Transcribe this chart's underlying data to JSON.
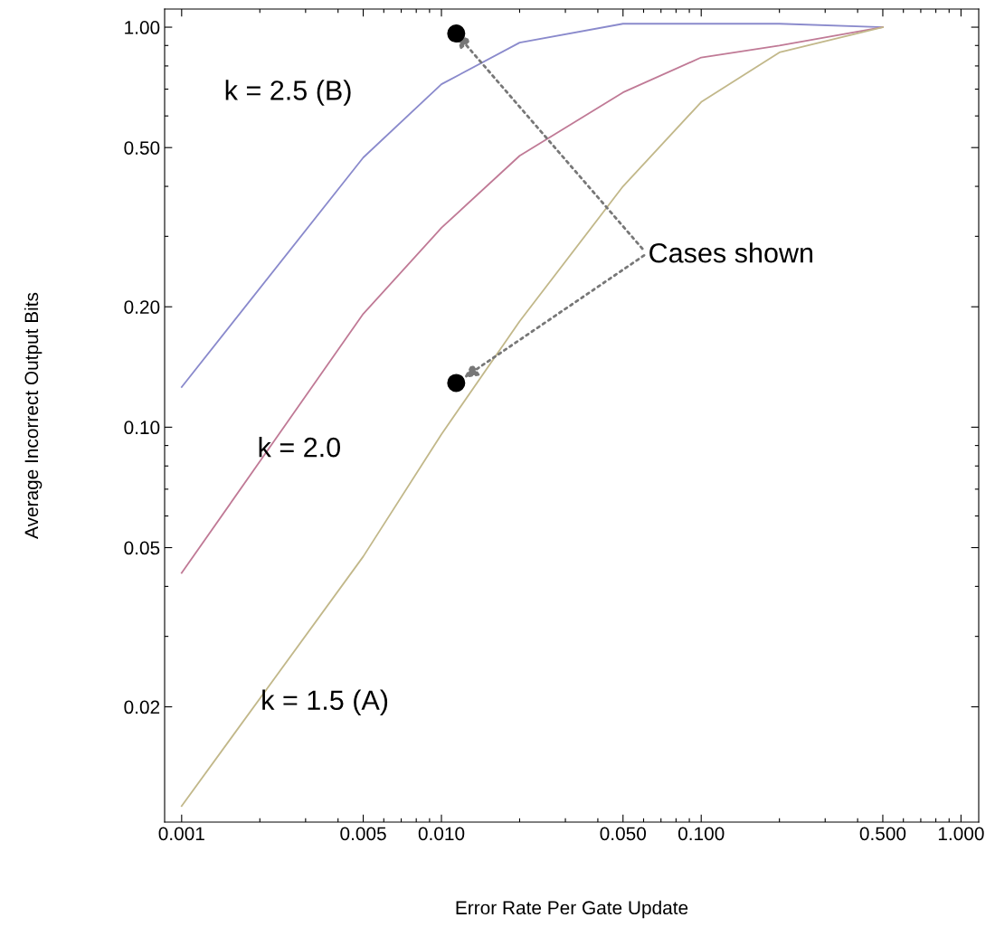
{
  "chart_data": {
    "type": "line",
    "xlabel": "Error Rate Per Gate Update",
    "ylabel": "Average Incorrect Output Bits",
    "log": "xy",
    "xlim": [
      0.00086,
      1.17
    ],
    "ylim": [
      0.0103,
      1.11
    ],
    "xticks": [
      0.001,
      {
        "value": 0.002,
        "label": null
      },
      {
        "value": 0.003,
        "label": null
      },
      {
        "value": 0.004,
        "label": null
      },
      0.005,
      {
        "value": 0.006,
        "label": null
      },
      {
        "value": 0.007,
        "label": null
      },
      {
        "value": 0.008,
        "label": null
      },
      {
        "value": 0.009,
        "label": null
      },
      {
        "value": 0.01,
        "label": "0.010"
      },
      {
        "value": 0.02,
        "label": null
      },
      {
        "value": 0.03,
        "label": null
      },
      {
        "value": 0.04,
        "label": null
      },
      {
        "value": 0.05,
        "label": "0.050"
      },
      {
        "value": 0.06,
        "label": null
      },
      {
        "value": 0.07,
        "label": null
      },
      {
        "value": 0.08,
        "label": null
      },
      {
        "value": 0.09,
        "label": null
      },
      {
        "value": 0.1,
        "label": "0.100"
      },
      {
        "value": 0.2,
        "label": null
      },
      {
        "value": 0.3,
        "label": null
      },
      {
        "value": 0.4,
        "label": null
      },
      {
        "value": 0.5,
        "label": "0.500"
      },
      {
        "value": 0.6,
        "label": null
      },
      {
        "value": 0.7,
        "label": null
      },
      {
        "value": 0.8,
        "label": null
      },
      {
        "value": 0.9,
        "label": null
      },
      {
        "value": 1.0,
        "label": "1.000"
      }
    ],
    "yticks": [
      0.02,
      {
        "value": 0.03,
        "label": null
      },
      {
        "value": 0.04,
        "label": null
      },
      0.05,
      {
        "value": 0.06,
        "label": null
      },
      {
        "value": 0.07,
        "label": null
      },
      {
        "value": 0.08,
        "label": null
      },
      {
        "value": 0.09,
        "label": null
      },
      {
        "value": 0.1,
        "label": "0.10"
      },
      {
        "value": 0.2,
        "label": "0.20"
      },
      {
        "value": 0.3,
        "label": null
      },
      {
        "value": 0.4,
        "label": null
      },
      {
        "value": 0.5,
        "label": "0.50"
      },
      {
        "value": 0.6,
        "label": null
      },
      {
        "value": 0.7,
        "label": null
      },
      {
        "value": 0.8,
        "label": null
      },
      {
        "value": 0.9,
        "label": null
      },
      {
        "value": 1.0,
        "label": "1.00"
      }
    ],
    "grid": false,
    "marker": "none",
    "line_style": "solid",
    "series": [
      {
        "name": "k = 2.5 (B)",
        "color": "#8a8acc",
        "x": [
          0.001,
          0.005,
          0.01,
          0.02,
          0.05,
          0.1,
          0.2,
          0.5
        ],
        "values": [
          0.126,
          0.472,
          0.72,
          0.915,
          1.02,
          1.02,
          1.02,
          1.0
        ]
      },
      {
        "name": "k = 2.0",
        "color": "#c07a96",
        "x": [
          0.001,
          0.005,
          0.01,
          0.02,
          0.05,
          0.1,
          0.2,
          0.5
        ],
        "values": [
          0.0432,
          0.192,
          0.315,
          0.477,
          0.687,
          0.84,
          0.9,
          1.0
        ]
      },
      {
        "name": "k = 1.5 (A)",
        "color": "#c2b88a",
        "x": [
          0.001,
          0.005,
          0.01,
          0.02,
          0.05,
          0.1,
          0.2,
          0.5
        ],
        "values": [
          0.0113,
          0.0475,
          0.096,
          0.184,
          0.4,
          0.65,
          0.865,
          1.0
        ]
      },
      {
        "type": "scatter",
        "marker": "circle",
        "color": "#000000",
        "x": [
          0.0114,
          0.0114
        ],
        "values": [
          0.964,
          0.129
        ]
      }
    ],
    "annotations": [
      {
        "text": "Cases shown",
        "x": 0.0114,
        "y": 0.964
      }
    ]
  }
}
